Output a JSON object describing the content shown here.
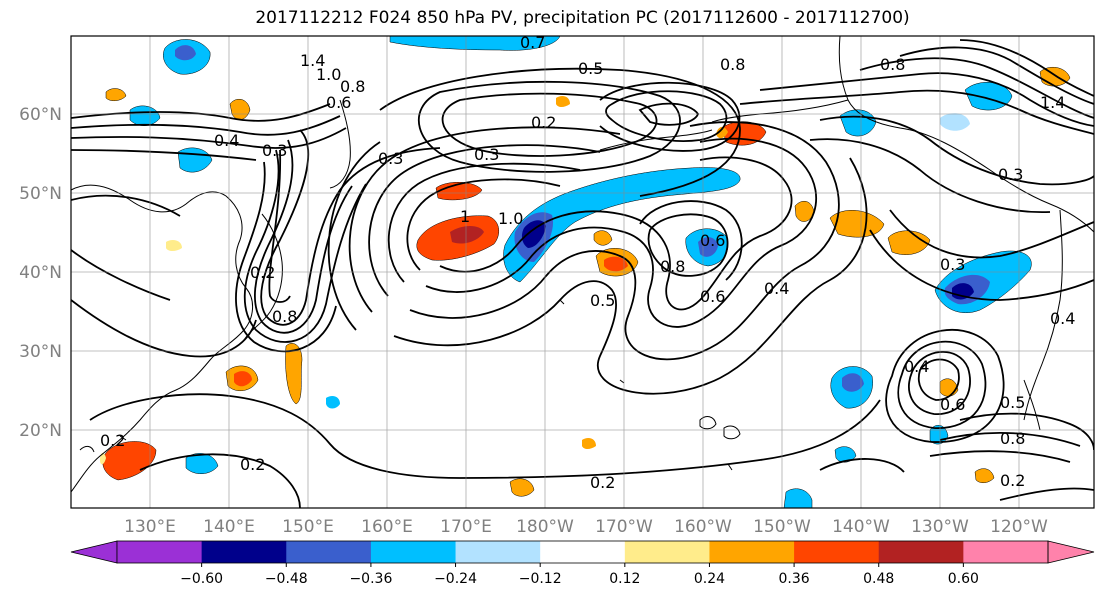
{
  "title": "2017112212 F024 850 hPa PV, precipitation PC (2017112600 - 2017112700)",
  "lat_labels": [
    "60°N",
    "50°N",
    "40°N",
    "30°N",
    "20°N"
  ],
  "lon_labels": [
    "130°E",
    "140°E",
    "150°E",
    "160°E",
    "170°E",
    "180°W",
    "170°W",
    "160°W",
    "150°W",
    "140°W",
    "130°W",
    "120°W"
  ],
  "colorbar": {
    "colors": [
      "#9b30d6",
      "#00008b",
      "#3a5fcd",
      "#00bfff",
      "#b2e2ff",
      "#ffffff",
      "#ffec8b",
      "#ffa500",
      "#ff4500",
      "#b22222",
      "#ff82ab"
    ],
    "tick_labels": [
      "−0.60",
      "−0.48",
      "−0.36",
      "−0.24",
      "−0.12",
      "0.12",
      "0.24",
      "0.36",
      "0.48",
      "0.60"
    ]
  },
  "contour_labels": [
    "1.4",
    "1.0",
    "0.8",
    "0.6",
    "0.4",
    "0.3",
    "0.2",
    "0.3",
    "0.5",
    "0.6",
    "0.8",
    "0.4",
    "1.0",
    "0.5",
    "0.3",
    "0.2",
    "0.4",
    "0.8",
    "0.2",
    "0.5",
    "0.8",
    "0.6",
    "0.3",
    "0.2",
    "1.4",
    "0.7",
    "0.2",
    "0.3",
    "0.6",
    "0.4",
    "0.8",
    "0.2",
    "0.8",
    "1"
  ]
}
